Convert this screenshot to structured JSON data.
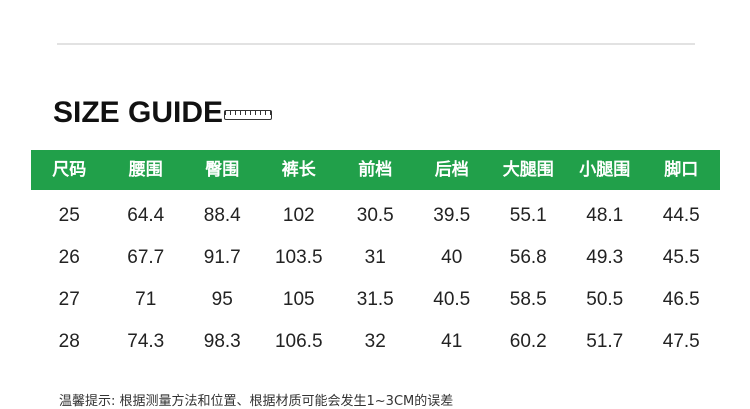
{
  "title": "SIZE GUIDE",
  "icon": "ruler-icon",
  "colors": {
    "header_bg": "#21a04a"
  },
  "headers": [
    "尺码",
    "腰围",
    "臀围",
    "裤长",
    "前档",
    "后档",
    "大腿围",
    "小腿围",
    "脚口"
  ],
  "rows": [
    [
      "25",
      "64.4",
      "88.4",
      "102",
      "30.5",
      "39.5",
      "55.1",
      "48.1",
      "44.5"
    ],
    [
      "26",
      "67.7",
      "91.7",
      "103.5",
      "31",
      "40",
      "56.8",
      "49.3",
      "45.5"
    ],
    [
      "27",
      "71",
      "95",
      "105",
      "31.5",
      "40.5",
      "58.5",
      "50.5",
      "46.5"
    ],
    [
      "28",
      "74.3",
      "98.3",
      "106.5",
      "32",
      "41",
      "60.2",
      "51.7",
      "47.5"
    ]
  ],
  "note": "温馨提示: 根据测量方法和位置、根据材质可能会发生1~3CM的误差"
}
